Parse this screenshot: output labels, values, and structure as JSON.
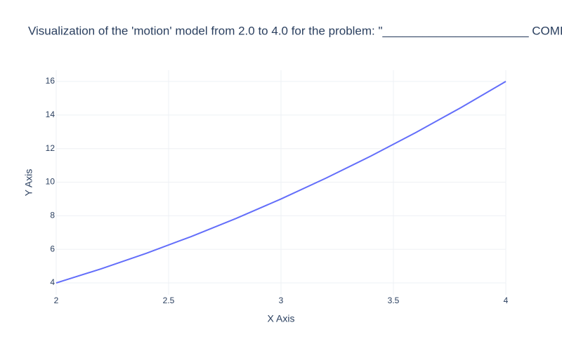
{
  "chart_data": {
    "type": "line",
    "title": "Visualization of the 'motion' model from 2.0 to 4.0 for the problem: \"______________________ COMI",
    "x_label": "X Axis",
    "y_label": "Y Axis",
    "x": [
      2.0,
      2.2,
      2.4,
      2.6,
      2.8,
      3.0,
      3.2,
      3.4,
      3.6,
      3.8,
      4.0
    ],
    "values": [
      4,
      4.84,
      5.76,
      6.76,
      7.84,
      9,
      10.24,
      11.56,
      12.96,
      14.44,
      16
    ],
    "color": "#636efa",
    "xlim": [
      2,
      4
    ],
    "xticks": [
      2,
      2.5,
      3,
      3.5,
      4
    ],
    "ylim": [
      3.29,
      16.67
    ],
    "yticks": [
      4,
      6,
      8,
      10,
      12,
      14,
      16
    ],
    "grid": true
  }
}
